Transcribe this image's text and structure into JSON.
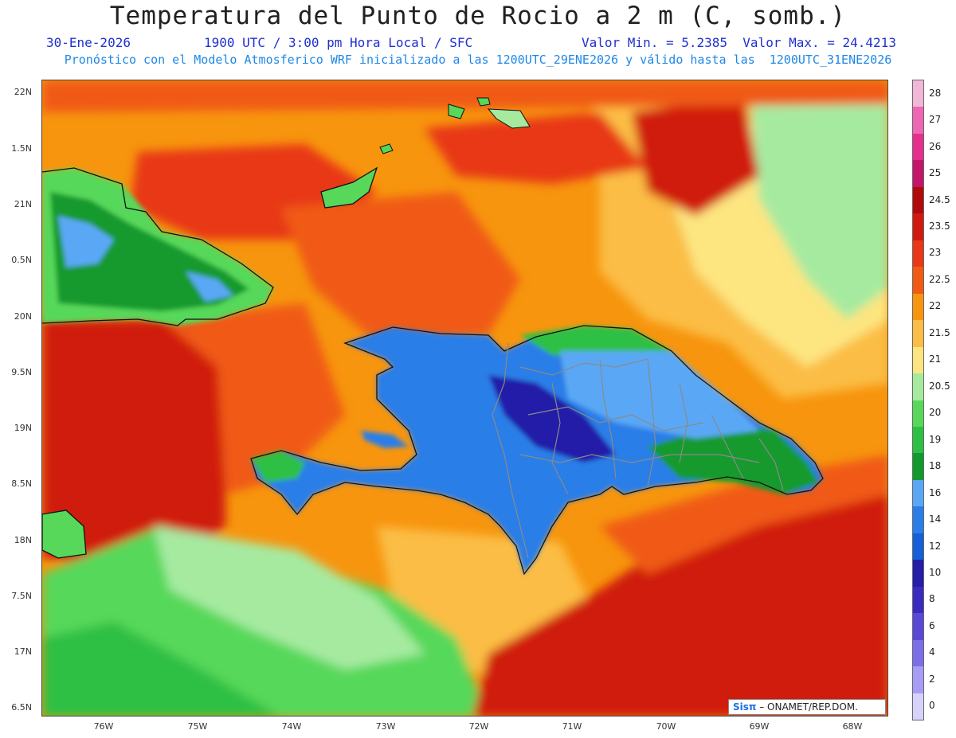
{
  "header": {
    "title": "Temperatura del Punto de Rocio a 2 m (C, somb.)",
    "date": "30-Ene-2026",
    "time": "1900 UTC / 3:00 pm Hora Local / SFC",
    "min_max": "Valor Min. = 5.2385  Valor Max. = 24.4213",
    "model_info": "Pronóstico con el Modelo Atmosferico WRF inicializado a las 1200UTC_29ENE2026 y válido hasta las  1200UTC_31ENE2026"
  },
  "map": {
    "lat_labels": [
      "22N",
      "1.5N",
      "21N",
      "0.5N",
      "20N",
      "9.5N",
      "19N",
      "8.5N",
      "18N",
      "7.5N",
      "17N",
      "6.5N"
    ],
    "lon_labels": [
      "76W",
      "75W",
      "74W",
      "73W",
      "72W",
      "71W",
      "70W",
      "69W",
      "68W"
    ],
    "stats": {
      "min": 5.2385,
      "max": 24.4213
    }
  },
  "colorbar": {
    "levels": [
      "28",
      "27",
      "26",
      "25",
      "24.5",
      "23.5",
      "23",
      "22.5",
      "22",
      "21.5",
      "21",
      "20.5",
      "20",
      "19",
      "18",
      "16",
      "14",
      "12",
      "10",
      "8",
      "6",
      "4",
      "2",
      "0"
    ],
    "colors": [
      "#f2b6d8",
      "#ef66b2",
      "#e42f8e",
      "#c3156a",
      "#b20a0a",
      "#d01a10",
      "#e83818",
      "#f05a12",
      "#f7950e",
      "#fbbd45",
      "#fde580",
      "#a6eaa0",
      "#57d85a",
      "#2ebf45",
      "#129a2e",
      "#5aa8f5",
      "#2a7ee8",
      "#1560d8",
      "#241ea8",
      "#3a2ac0",
      "#5a48d6",
      "#7c6ee8",
      "#a79cf6",
      "#d6d2fb"
    ]
  },
  "credit": {
    "brand": "Sisπ",
    "text": "– ONAMET/REP.DOM."
  }
}
